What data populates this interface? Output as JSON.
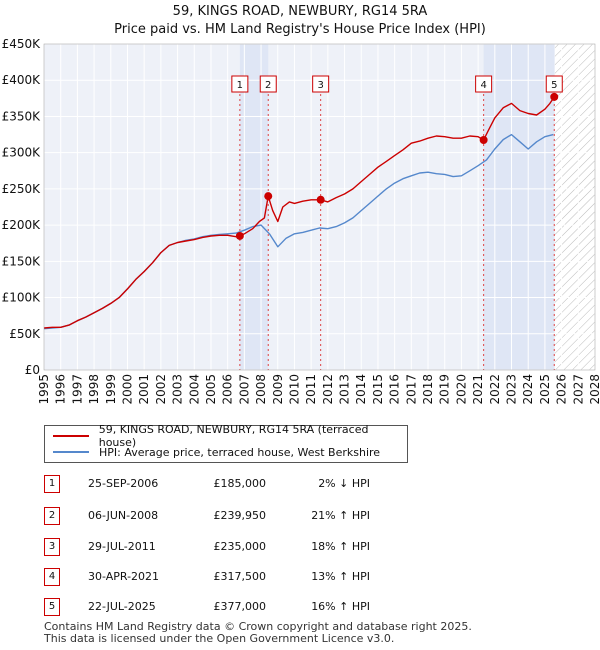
{
  "title_line1": "59, KINGS ROAD, NEWBURY, RG14 5RA",
  "title_line2": "Price paid vs. HM Land Registry's House Price Index (HPI)",
  "chart_data": {
    "type": "line",
    "xlim": [
      1995,
      2028
    ],
    "ylim": [
      0,
      450000
    ],
    "y_ticks": [
      0,
      50000,
      100000,
      150000,
      200000,
      250000,
      300000,
      350000,
      400000,
      450000
    ],
    "y_tick_labels": [
      "£0",
      "£50K",
      "£100K",
      "£150K",
      "£200K",
      "£250K",
      "£300K",
      "£350K",
      "£400K",
      "£450K"
    ],
    "x_ticks": [
      1995,
      1996,
      1997,
      1998,
      1999,
      2000,
      2001,
      2002,
      2003,
      2004,
      2005,
      2006,
      2007,
      2008,
      2009,
      2010,
      2011,
      2012,
      2013,
      2014,
      2015,
      2016,
      2017,
      2018,
      2019,
      2020,
      2021,
      2022,
      2023,
      2024,
      2025,
      2026,
      2027,
      2028
    ],
    "x_tick_labels": [
      "1995",
      "1996",
      "1997",
      "1998",
      "1999",
      "2000",
      "2001",
      "2002",
      "2003",
      "2004",
      "2005",
      "2006",
      "2007",
      "2008",
      "2009",
      "2010",
      "2011",
      "2012",
      "2013",
      "2014",
      "2015",
      "2016",
      "2017",
      "2018",
      "2019",
      "2020",
      "2021",
      "2022",
      "2023",
      "2024",
      "2025",
      "2026",
      "2027",
      "2028"
    ],
    "hatch_from": 2025.6,
    "series": [
      {
        "name": "59, KINGS ROAD, NEWBURY, RG14 5RA (terraced house)",
        "color": "#cc0000",
        "x": [
          1995.0,
          1995.5,
          1996.0,
          1996.5,
          1997.0,
          1997.5,
          1998.0,
          1998.5,
          1999.0,
          1999.5,
          2000.0,
          2000.5,
          2001.0,
          2001.5,
          2002.0,
          2002.5,
          2003.0,
          2003.5,
          2004.0,
          2004.5,
          2005.0,
          2005.5,
          2006.0,
          2006.5,
          2006.73,
          2007.0,
          2007.5,
          2007.9,
          2008.2,
          2008.43,
          2008.7,
          2009.0,
          2009.3,
          2009.7,
          2010.0,
          2010.5,
          2011.0,
          2011.57,
          2012.0,
          2012.5,
          2013.0,
          2013.5,
          2014.0,
          2014.5,
          2015.0,
          2015.5,
          2016.0,
          2016.5,
          2017.0,
          2017.5,
          2018.0,
          2018.5,
          2019.0,
          2019.5,
          2020.0,
          2020.5,
          2021.0,
          2021.33,
          2021.6,
          2022.0,
          2022.5,
          2023.0,
          2023.5,
          2024.0,
          2024.5,
          2025.0,
          2025.3,
          2025.56
        ],
        "y": [
          58000,
          59000,
          59000,
          62000,
          68000,
          73000,
          79000,
          85000,
          92000,
          100000,
          112000,
          125000,
          136000,
          148000,
          162000,
          172000,
          176000,
          178000,
          180000,
          183000,
          185000,
          186000,
          186000,
          184000,
          185000,
          188000,
          195000,
          205000,
          210000,
          239950,
          220000,
          205000,
          225000,
          232000,
          230000,
          233000,
          235000,
          235000,
          232000,
          238000,
          243000,
          250000,
          260000,
          270000,
          280000,
          288000,
          296000,
          304000,
          313000,
          316000,
          320000,
          323000,
          322000,
          320000,
          320000,
          323000,
          322000,
          317500,
          330000,
          348000,
          362000,
          368000,
          358000,
          354000,
          352000,
          360000,
          368000,
          377000
        ]
      },
      {
        "name": "HPI: Average price, terraced house, West Berkshire",
        "color": "#5588cc",
        "x": [
          1995.0,
          1995.5,
          1996.0,
          1996.5,
          1997.0,
          1997.5,
          1998.0,
          1998.5,
          1999.0,
          1999.5,
          2000.0,
          2000.5,
          2001.0,
          2001.5,
          2002.0,
          2002.5,
          2003.0,
          2003.5,
          2004.0,
          2004.5,
          2005.0,
          2005.5,
          2006.0,
          2006.5,
          2007.0,
          2007.5,
          2008.0,
          2008.5,
          2009.0,
          2009.5,
          2010.0,
          2010.5,
          2011.0,
          2011.5,
          2012.0,
          2012.5,
          2013.0,
          2013.5,
          2014.0,
          2014.5,
          2015.0,
          2015.5,
          2016.0,
          2016.5,
          2017.0,
          2017.5,
          2018.0,
          2018.5,
          2019.0,
          2019.5,
          2020.0,
          2020.5,
          2021.0,
          2021.5,
          2022.0,
          2022.5,
          2023.0,
          2023.5,
          2024.0,
          2024.5,
          2025.0,
          2025.5
        ],
        "y": [
          57000,
          58000,
          59000,
          62000,
          68000,
          73000,
          79000,
          85000,
          92000,
          100000,
          112000,
          125000,
          136000,
          148000,
          162000,
          172000,
          176000,
          179000,
          181000,
          184000,
          186000,
          187000,
          188000,
          189000,
          193000,
          198000,
          200000,
          188000,
          170000,
          182000,
          188000,
          190000,
          193000,
          196000,
          195000,
          198000,
          203000,
          210000,
          220000,
          230000,
          240000,
          250000,
          258000,
          264000,
          268000,
          272000,
          273000,
          271000,
          270000,
          267000,
          268000,
          275000,
          282000,
          290000,
          305000,
          318000,
          325000,
          315000,
          305000,
          315000,
          322000,
          325000
        ]
      }
    ],
    "sales": [
      {
        "label": "1",
        "x": 2006.73,
        "y": 185000
      },
      {
        "label": "2",
        "x": 2008.43,
        "y": 239950
      },
      {
        "label": "3",
        "x": 2011.57,
        "y": 235000
      },
      {
        "label": "4",
        "x": 2021.33,
        "y": 317500
      },
      {
        "label": "5",
        "x": 2025.56,
        "y": 377000
      }
    ],
    "shaded_ranges": [
      [
        2006.73,
        2008.43
      ],
      [
        2021.33,
        2025.56
      ]
    ]
  },
  "legend": {
    "property_label": "59, KINGS ROAD, NEWBURY, RG14 5RA (terraced house)",
    "hpi_label": "HPI: Average price, terraced house, West Berkshire",
    "property_color": "#cc0000",
    "hpi_color": "#5588cc"
  },
  "transactions": [
    {
      "num": "1",
      "date": "25-SEP-2006",
      "price": "£185,000",
      "hpi": "2% ↓ HPI"
    },
    {
      "num": "2",
      "date": "06-JUN-2008",
      "price": "£239,950",
      "hpi": "21% ↑ HPI"
    },
    {
      "num": "3",
      "date": "29-JUL-2011",
      "price": "£235,000",
      "hpi": "18% ↑ HPI"
    },
    {
      "num": "4",
      "date": "30-APR-2021",
      "price": "£317,500",
      "hpi": "13% ↑ HPI"
    },
    {
      "num": "5",
      "date": "22-JUL-2025",
      "price": "£377,000",
      "hpi": "16% ↑ HPI"
    }
  ],
  "footer_line1": "Contains HM Land Registry data © Crown copyright and database right 2025.",
  "footer_line2": "This data is licensed under the Open Government Licence v3.0."
}
